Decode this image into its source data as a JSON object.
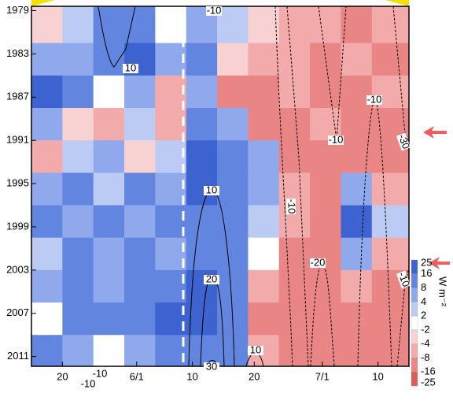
{
  "chart_data": {
    "type": "heatmap",
    "x_edges": [
      135,
      140,
      145,
      150,
      155,
      160,
      165,
      170,
      175,
      180,
      185,
      190,
      196
    ],
    "y_edges": [
      1978.6,
      1982,
      1985,
      1988,
      1991,
      1994,
      1997,
      2000,
      2003,
      2006,
      2009,
      2011.9
    ],
    "z": [
      [
        -4,
        2,
        8,
        10,
        -2,
        4,
        2,
        -4,
        -8,
        -8,
        -10,
        -8
      ],
      [
        6,
        4,
        10,
        16,
        4,
        8,
        -4,
        -8,
        -8,
        -10,
        -8,
        -12
      ],
      [
        16,
        8,
        -2,
        4,
        -6,
        4,
        -10,
        -12,
        -8,
        -12,
        -10,
        -8
      ],
      [
        4,
        -4,
        -6,
        2,
        -8,
        8,
        4,
        -12,
        -10,
        -8,
        -12,
        -14
      ],
      [
        -6,
        2,
        4,
        -4,
        2,
        16,
        10,
        4,
        -10,
        -12,
        -10,
        -16
      ],
      [
        4,
        8,
        2,
        8,
        6,
        16,
        10,
        4,
        -8,
        -10,
        4,
        -8
      ],
      [
        8,
        4,
        10,
        4,
        8,
        12,
        10,
        2,
        -8,
        -10,
        16,
        2
      ],
      [
        2,
        10,
        4,
        8,
        6,
        14,
        12,
        -2,
        -10,
        -12,
        4,
        -8
      ],
      [
        4,
        8,
        4,
        10,
        12,
        16,
        8,
        -8,
        -10,
        -12,
        -8,
        -10
      ],
      [
        -2,
        8,
        12,
        10,
        16,
        20,
        12,
        -10,
        -12,
        -14,
        -16,
        -12
      ],
      [
        8,
        4,
        -2,
        6,
        10,
        12,
        8,
        -8,
        -10,
        -12,
        -14,
        -12
      ]
    ],
    "xlim": [
      135,
      196
    ],
    "ylim": [
      1978.6,
      2011.9
    ],
    "y_inverted": true,
    "xticks": [
      {
        "value": 140,
        "label": "20"
      },
      {
        "value": 152,
        "label": "6/1"
      },
      {
        "value": 161,
        "label": "10"
      },
      {
        "value": 171,
        "label": "20"
      },
      {
        "value": 182,
        "label": "7/1"
      },
      {
        "value": 191,
        "label": "10"
      }
    ],
    "yticks": [
      1979,
      1983,
      1987,
      1991,
      1995,
      1999,
      2003,
      2007,
      2011
    ],
    "colorbar_levels": [
      25,
      16,
      8,
      4,
      2,
      -2,
      -4,
      -8,
      -16,
      -25
    ],
    "colorbar_colors": [
      "#3d63d0",
      "#6286e0",
      "#90a9ec",
      "#bccbf4",
      "#ffffff",
      "#f8d2d2",
      "#f2aaaa",
      "#ea8585",
      "#e05a5a"
    ],
    "colorbar_label": "W m⁻²",
    "contour_labels": [
      -10,
      10,
      -10,
      -10,
      -30,
      10,
      -10,
      20,
      -20,
      10,
      30,
      -10,
      -10,
      -10
    ]
  }
}
